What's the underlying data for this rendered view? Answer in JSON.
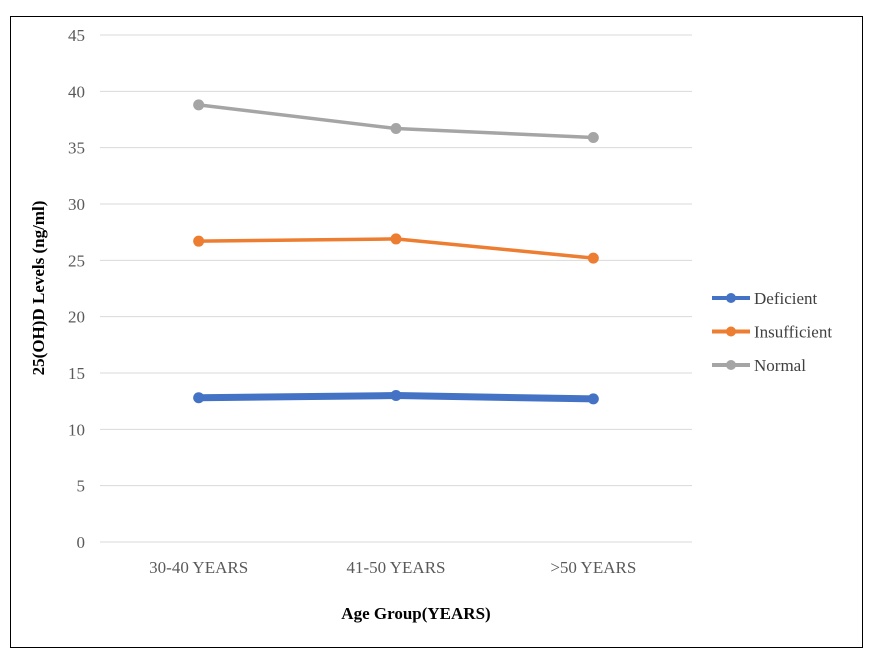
{
  "chart_data": {
    "type": "line",
    "categories": [
      "30-40 YEARS",
      "41-50 YEARS",
      ">50 YEARS"
    ],
    "series": [
      {
        "name": "Deficient",
        "values": [
          12.8,
          13.0,
          12.7
        ],
        "color": "#4472C4"
      },
      {
        "name": "Insufficient",
        "values": [
          26.7,
          26.9,
          25.2
        ],
        "color": "#ED7D31"
      },
      {
        "name": "Normal",
        "values": [
          38.8,
          36.7,
          35.9
        ],
        "color": "#A5A5A5"
      }
    ],
    "title": "",
    "xlabel": "Age Group(YEARS)",
    "ylabel": "25(OH)D Levels (ng/ml)",
    "ylim": [
      0,
      45
    ],
    "yticks": [
      0,
      5,
      10,
      15,
      20,
      25,
      30,
      35,
      40,
      45
    ],
    "grid": true,
    "legend_position": "right"
  }
}
